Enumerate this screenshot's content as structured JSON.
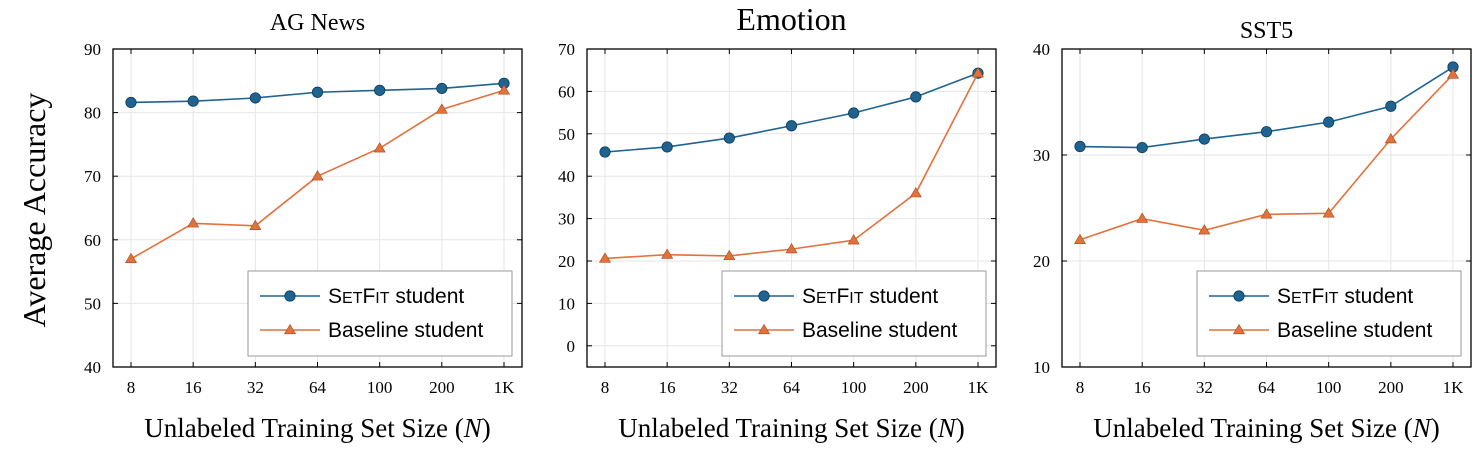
{
  "figure": {
    "ylabel": "Average Accuracy",
    "xlabel_text": "Unlabeled Training Set Size (",
    "xlabel_var": "N",
    "xlabel_close": ")"
  },
  "colors": {
    "setfit": "#1f6391",
    "baseline": "#e3713c",
    "grid": "#e6e6e6"
  },
  "chart_data": [
    {
      "type": "line",
      "title": "AG News",
      "categories": [
        "8",
        "16",
        "32",
        "64",
        "100",
        "200",
        "1K"
      ],
      "ylim": [
        40,
        90
      ],
      "yticks": [
        40,
        50,
        60,
        70,
        80,
        90
      ],
      "grid": true,
      "legend_position": "bottom-right",
      "series": [
        {
          "name_prefix": "S",
          "name_smallcaps": "ET",
          "name_prefix2": "F",
          "name_smallcaps2": "IT",
          "name_suffix": " student",
          "marker": "circle",
          "color": "#1f6391",
          "values": [
            81.6,
            81.8,
            82.3,
            83.2,
            83.5,
            83.8,
            84.6
          ]
        },
        {
          "name": "Baseline student",
          "marker": "triangle",
          "color": "#e3713c",
          "values": [
            57.0,
            62.6,
            62.2,
            70.0,
            74.4,
            80.5,
            83.5
          ]
        }
      ]
    },
    {
      "type": "line",
      "title": "Emotion",
      "categories": [
        "8",
        "16",
        "32",
        "64",
        "100",
        "200",
        "1K"
      ],
      "ylim": [
        -5,
        70
      ],
      "yticks": [
        0,
        10,
        20,
        30,
        40,
        50,
        60,
        70
      ],
      "grid": true,
      "legend_position": "bottom-right",
      "series": [
        {
          "name_prefix": "S",
          "name_smallcaps": "ET",
          "name_prefix2": "F",
          "name_smallcaps2": "IT",
          "name_suffix": " student",
          "marker": "circle",
          "color": "#1f6391",
          "values": [
            45.7,
            46.9,
            49.0,
            51.9,
            54.9,
            58.7,
            64.3
          ]
        },
        {
          "name": "Baseline student",
          "marker": "triangle",
          "color": "#e3713c",
          "values": [
            20.6,
            21.5,
            21.2,
            22.8,
            24.9,
            36.0,
            64.3
          ]
        }
      ]
    },
    {
      "type": "line",
      "title": "SST5",
      "categories": [
        "8",
        "16",
        "32",
        "64",
        "100",
        "200",
        "1K"
      ],
      "ylim": [
        10,
        40
      ],
      "yticks": [
        10,
        20,
        30,
        40
      ],
      "grid": true,
      "legend_position": "bottom-right",
      "series": [
        {
          "name_prefix": "S",
          "name_smallcaps": "ET",
          "name_prefix2": "F",
          "name_smallcaps2": "IT",
          "name_suffix": " student",
          "marker": "circle",
          "color": "#1f6391",
          "values": [
            30.8,
            30.7,
            31.5,
            32.2,
            33.1,
            34.6,
            38.3
          ]
        },
        {
          "name": "Baseline student",
          "marker": "triangle",
          "color": "#e3713c",
          "values": [
            22.0,
            24.0,
            22.9,
            24.4,
            24.5,
            31.5,
            37.6
          ]
        }
      ]
    }
  ]
}
